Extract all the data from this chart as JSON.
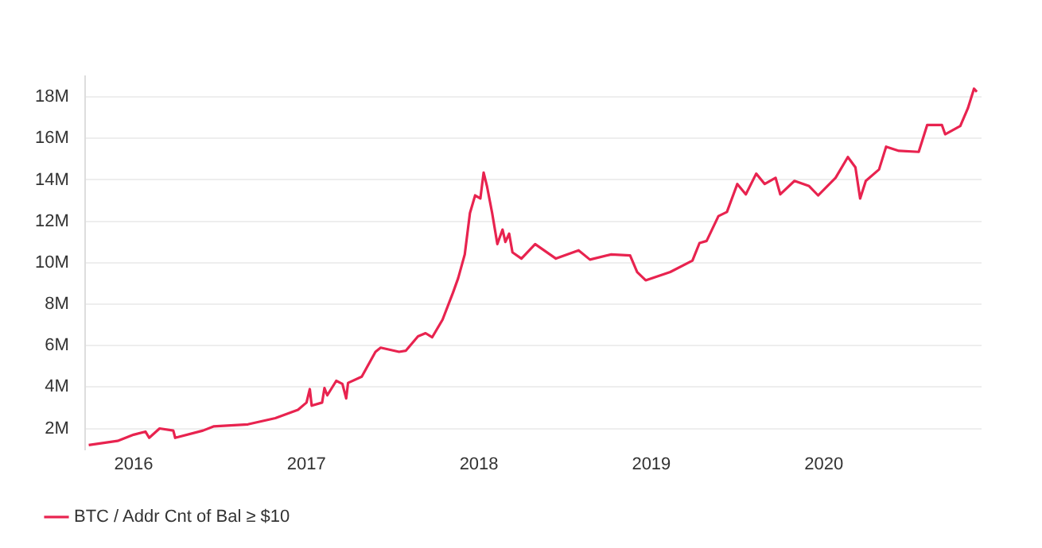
{
  "chart_data": {
    "type": "line",
    "grid": "y",
    "legend": "bottom",
    "marker": "none",
    "line_style": "solid",
    "xlim": [
      "2015-09-20",
      "2020-11-30"
    ],
    "xticks": [
      "2016",
      "2017",
      "2018",
      "2019",
      "2020"
    ],
    "ylim": [
      1,
      19
    ],
    "yticks": [
      {
        "value": 2,
        "label": "2M"
      },
      {
        "value": 4,
        "label": "4M"
      },
      {
        "value": 6,
        "label": "6M"
      },
      {
        "value": 8,
        "label": "8M"
      },
      {
        "value": 10,
        "label": "10M"
      },
      {
        "value": 12,
        "label": "12M"
      },
      {
        "value": 14,
        "label": "14M"
      },
      {
        "value": 16,
        "label": "16M"
      },
      {
        "value": 18,
        "label": "18M"
      }
    ],
    "x": [
      "2015-09-28",
      "2015-11-28",
      "2016-01-01",
      "2016-01-26",
      "2016-02-03",
      "2016-02-25",
      "2016-03-25",
      "2016-03-29",
      "2016-05-27",
      "2016-06-18",
      "2016-08-30",
      "2016-10-27",
      "2016-12-14",
      "2017-01-01",
      "2017-01-08",
      "2017-01-12",
      "2017-02-03",
      "2017-02-08",
      "2017-02-14",
      "2017-03-05",
      "2017-03-18",
      "2017-03-26",
      "2017-03-30",
      "2017-04-28",
      "2017-05-27",
      "2017-06-07",
      "2017-07-16",
      "2017-07-30",
      "2017-08-25",
      "2017-09-10",
      "2017-09-24",
      "2017-10-16",
      "2017-11-07",
      "2017-11-18",
      "2017-12-02",
      "2017-12-13",
      "2017-12-24",
      "2018-01-04",
      "2018-01-11",
      "2018-01-18",
      "2018-01-29",
      "2018-02-09",
      "2018-02-20",
      "2018-02-26",
      "2018-03-06",
      "2018-03-13",
      "2018-04-01",
      "2018-04-30",
      "2018-06-13",
      "2018-07-31",
      "2018-08-24",
      "2018-10-08",
      "2018-11-17",
      "2018-12-02",
      "2018-12-20",
      "2019-02-10",
      "2019-03-29",
      "2019-04-13",
      "2019-04-28",
      "2019-05-23",
      "2019-06-10",
      "2019-07-02",
      "2019-07-20",
      "2019-08-11",
      "2019-08-29",
      "2019-09-21",
      "2019-10-01",
      "2019-10-31",
      "2019-12-01",
      "2019-12-20",
      "2020-01-26",
      "2020-02-21",
      "2020-03-08",
      "2020-03-18",
      "2020-03-30",
      "2020-04-27",
      "2020-05-12",
      "2020-06-08",
      "2020-07-20",
      "2020-08-07",
      "2020-09-07",
      "2020-09-14",
      "2020-10-16",
      "2020-11-01",
      "2020-11-14",
      "2020-11-20"
    ],
    "series": [
      {
        "name": "BTC / Addr Cnt of Bal ≥ $10",
        "color": "#e8234f",
        "values": [
          1.2,
          1.4,
          1.7,
          1.85,
          1.55,
          2.0,
          1.9,
          1.55,
          1.9,
          2.1,
          2.2,
          2.5,
          2.9,
          3.25,
          3.9,
          3.1,
          3.25,
          3.95,
          3.6,
          4.3,
          4.15,
          3.45,
          4.2,
          4.5,
          5.7,
          5.9,
          5.7,
          5.75,
          6.45,
          6.6,
          6.4,
          7.25,
          8.55,
          9.25,
          10.4,
          12.4,
          13.25,
          13.1,
          14.35,
          13.7,
          12.4,
          10.9,
          11.6,
          11.0,
          11.4,
          10.5,
          10.2,
          10.9,
          10.2,
          10.6,
          10.15,
          10.4,
          10.35,
          9.55,
          9.15,
          9.55,
          10.1,
          10.95,
          11.05,
          12.25,
          12.45,
          13.8,
          13.3,
          14.3,
          13.8,
          14.1,
          13.3,
          13.95,
          13.7,
          13.25,
          14.1,
          15.1,
          14.6,
          13.1,
          13.95,
          14.5,
          15.6,
          15.4,
          15.35,
          16.65,
          16.65,
          16.2,
          16.6,
          17.45,
          18.4,
          18.25
        ]
      }
    ]
  }
}
